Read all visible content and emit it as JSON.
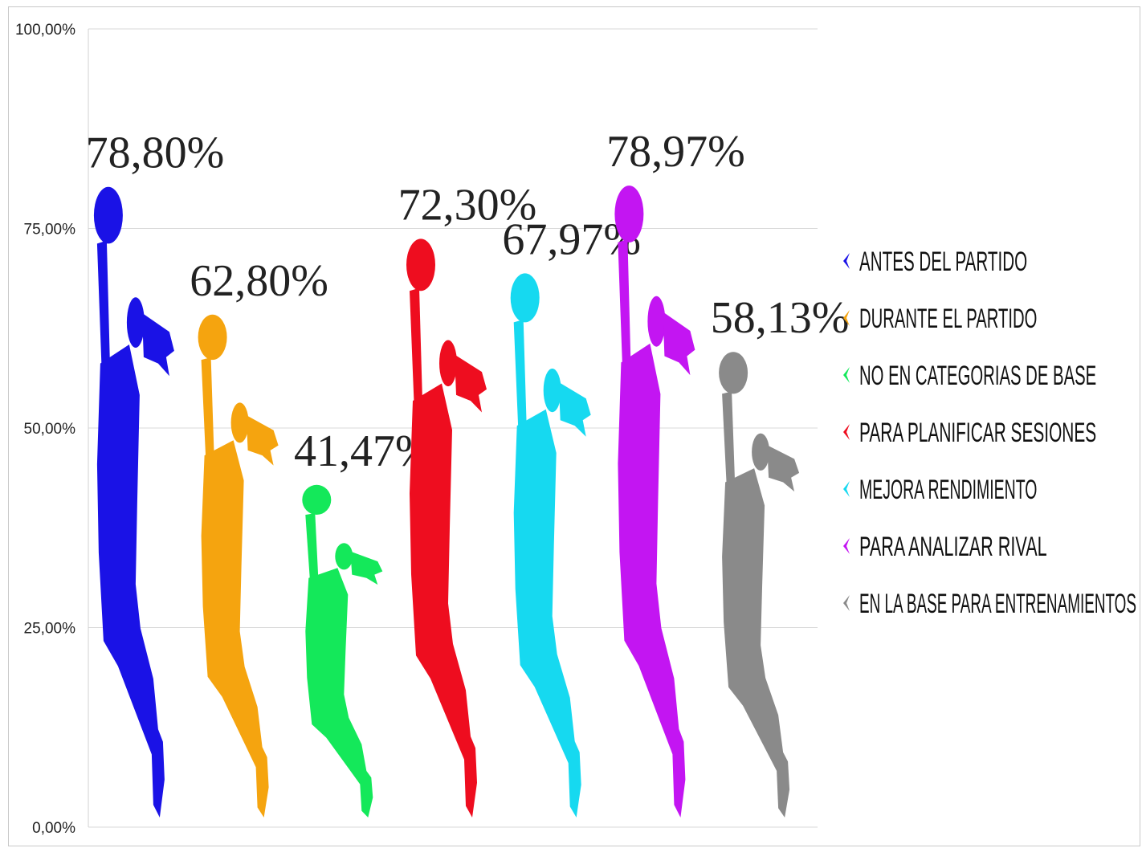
{
  "chart_data": {
    "type": "bar",
    "categories": [
      "ANTES DEL PARTIDO",
      "DURANTE EL PARTIDO",
      "NO EN CATEGORIAS DE BASE",
      "PARA PLANIFICAR SESIONES",
      "MEJORA RENDIMIENTO",
      "PARA ANALIZAR RIVAL",
      "EN LA BASE PARA ENTRENAMIENTOS"
    ],
    "values": [
      78.8,
      62.8,
      41.47,
      72.3,
      67.97,
      78.97,
      58.13
    ],
    "data_labels": [
      "78,80%",
      "62,80%",
      "41,47%",
      "72,30%",
      "67,97%",
      "78,97%",
      "58,13%"
    ],
    "colors": [
      "#1a12e6",
      "#f5a40f",
      "#14e85a",
      "#ee0d1f",
      "#16d9f0",
      "#c315f2",
      "#8a8a8a"
    ],
    "marker": "basketball-player-silhouette",
    "ylim": [
      0,
      100
    ],
    "yticks": [
      "0,00%",
      "25,00%",
      "50,00%",
      "75,00%",
      "100,00%"
    ],
    "ytick_values": [
      0,
      25,
      50,
      75,
      100
    ],
    "grid": true,
    "legend_position": "right",
    "title": "",
    "xlabel": "",
    "ylabel": ""
  }
}
